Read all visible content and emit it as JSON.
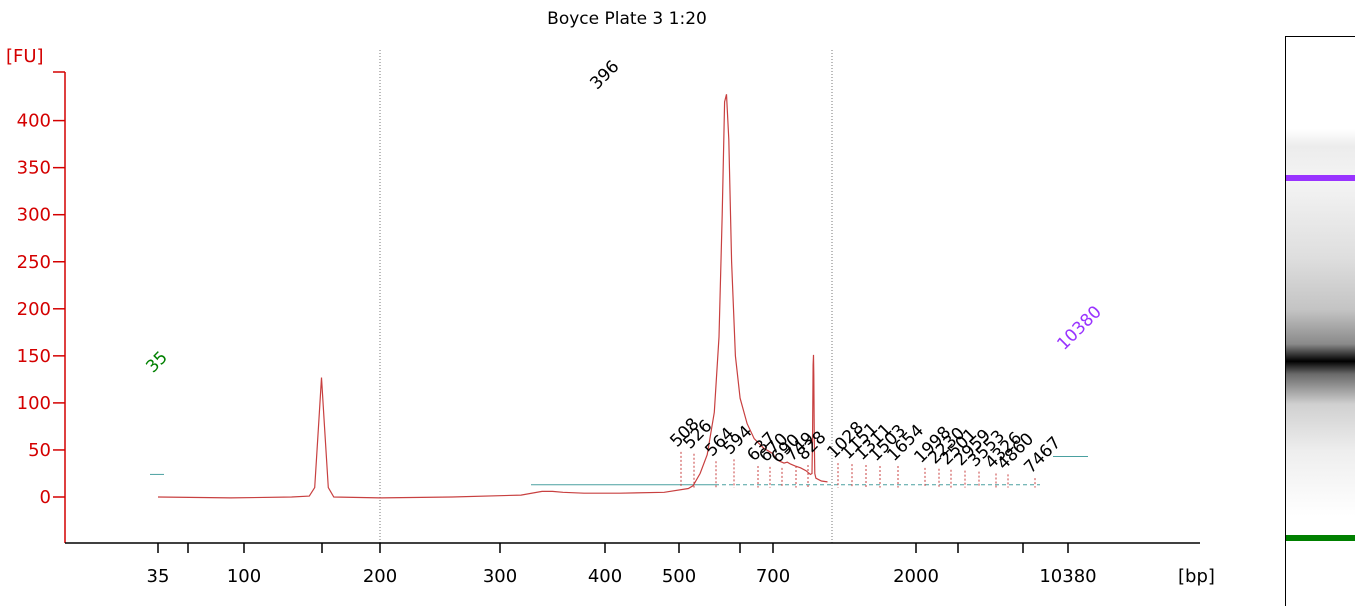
{
  "chart_data": {
    "type": "line",
    "title": "Boyce Plate 3 1:20",
    "ylabel": "[FU]",
    "xlabel": "[bp]",
    "ylim": [
      -45,
      460
    ],
    "yticks": [
      0,
      50,
      100,
      150,
      200,
      250,
      300,
      350,
      400
    ],
    "xtick_labels": [
      "35",
      "100",
      "200",
      "300",
      "400",
      "500",
      "700",
      "2000",
      "10380"
    ],
    "colors": {
      "trace": "#c84040",
      "axis": "#d40000",
      "lower_marker": "#008000",
      "upper_marker": "#9933ff",
      "peak_label": "#000000",
      "baseline": "#4aa0a0"
    },
    "peak_labels": [
      {
        "label": "35",
        "marker": "lower"
      },
      {
        "label": "396",
        "marker": "none"
      },
      {
        "label": "508",
        "marker": "none"
      },
      {
        "label": "526",
        "marker": "none"
      },
      {
        "label": "564",
        "marker": "none"
      },
      {
        "label": "594",
        "marker": "none"
      },
      {
        "label": "637",
        "marker": "none"
      },
      {
        "label": "670",
        "marker": "none"
      },
      {
        "label": "690",
        "marker": "none"
      },
      {
        "label": "749",
        "marker": "none"
      },
      {
        "label": "828",
        "marker": "none"
      },
      {
        "label": "1028",
        "marker": "none"
      },
      {
        "label": "1151",
        "marker": "none"
      },
      {
        "label": "1311",
        "marker": "none"
      },
      {
        "label": "1503",
        "marker": "none"
      },
      {
        "label": "1654",
        "marker": "none"
      },
      {
        "label": "1998",
        "marker": "none"
      },
      {
        "label": "2230",
        "marker": "none"
      },
      {
        "label": "2501",
        "marker": "none"
      },
      {
        "label": "2959",
        "marker": "none"
      },
      {
        "label": "3553",
        "marker": "none"
      },
      {
        "label": "4326",
        "marker": "none"
      },
      {
        "label": "4860",
        "marker": "none"
      },
      {
        "label": "7467",
        "marker": "none"
      },
      {
        "label": "10380",
        "marker": "upper"
      }
    ],
    "peak_heights": [
      127,
      428,
      48,
      46,
      38,
      40,
      33,
      32,
      31,
      33,
      34,
      36,
      35,
      34,
      33,
      33,
      31,
      30,
      29,
      28,
      27,
      25,
      24,
      20,
      151
    ],
    "trace": [
      [
        35,
        0
      ],
      [
        90,
        -1
      ],
      [
        135,
        0
      ],
      [
        148,
        1
      ],
      [
        152,
        10
      ],
      [
        155,
        80
      ],
      [
        157,
        127
      ],
      [
        159,
        80
      ],
      [
        162,
        10
      ],
      [
        166,
        0
      ],
      [
        200,
        -1
      ],
      [
        260,
        0
      ],
      [
        320,
        2
      ],
      [
        340,
        6
      ],
      [
        350,
        6
      ],
      [
        360,
        5
      ],
      [
        380,
        4
      ],
      [
        420,
        4
      ],
      [
        480,
        5
      ],
      [
        520,
        9
      ],
      [
        530,
        12
      ],
      [
        545,
        25
      ],
      [
        560,
        45
      ],
      [
        575,
        90
      ],
      [
        585,
        170
      ],
      [
        592,
        300
      ],
      [
        597,
        420
      ],
      [
        601,
        428
      ],
      [
        606,
        380
      ],
      [
        612,
        250
      ],
      [
        620,
        150
      ],
      [
        630,
        105
      ],
      [
        645,
        78
      ],
      [
        660,
        62
      ],
      [
        680,
        52
      ],
      [
        700,
        46
      ],
      [
        720,
        42
      ],
      [
        760,
        38
      ],
      [
        800,
        36
      ],
      [
        830,
        37
      ],
      [
        860,
        35
      ],
      [
        900,
        33
      ],
      [
        950,
        31
      ],
      [
        1000,
        28
      ],
      [
        1040,
        24
      ],
      [
        1055,
        25
      ],
      [
        1060,
        70
      ],
      [
        1065,
        140
      ],
      [
        1068,
        151
      ],
      [
        1071,
        130
      ],
      [
        1075,
        60
      ],
      [
        1080,
        25
      ],
      [
        1090,
        20
      ],
      [
        1140,
        17
      ],
      [
        1195,
        16
      ]
    ]
  },
  "gel": {
    "upper_marker_color": "#9933ff",
    "lower_marker_color": "#008000"
  }
}
